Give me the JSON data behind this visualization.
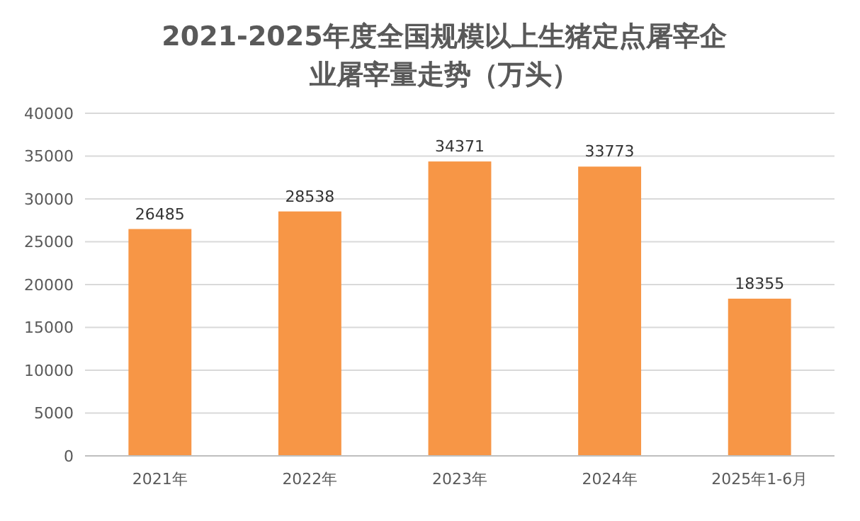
{
  "chart_data": {
    "type": "bar",
    "title": "2021-2025年度全国规模以上生猪定点屠宰企业屠宰量走势（万头）",
    "categories": [
      "2021年",
      "2022年",
      "2023年",
      "2024年",
      "2025年1-6月"
    ],
    "values": [
      26485,
      28538,
      34371,
      33773,
      18355
    ],
    "color": "#f79646",
    "ylim": [
      0,
      40000
    ],
    "yticks": [
      0,
      5000,
      10000,
      15000,
      20000,
      25000,
      30000,
      35000,
      40000
    ],
    "grid": "y",
    "data_labels": true
  }
}
